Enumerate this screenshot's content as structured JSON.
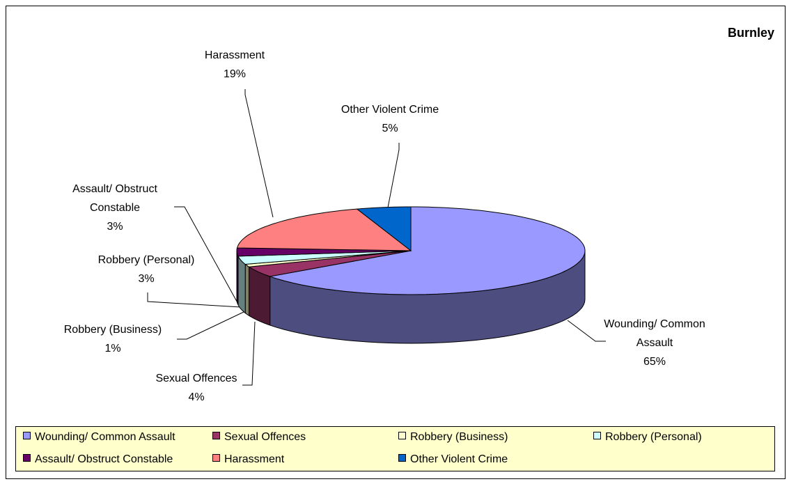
{
  "chart_data": {
    "type": "pie",
    "title": "Burnley",
    "categories": [
      "Wounding/ Common Assault",
      "Sexual Offences",
      "Robbery (Business)",
      "Robbery (Personal)",
      "Assault/ Obstruct Constable",
      "Harassment",
      "Other Violent Crime"
    ],
    "values": [
      65,
      4,
      1,
      3,
      3,
      19,
      5
    ],
    "value_labels": [
      "65%",
      "4%",
      "1%",
      "3%",
      "3%",
      "19%",
      "5%"
    ],
    "colors": [
      "#9999ff",
      "#993366",
      "#ffffcc",
      "#ccffff",
      "#660066",
      "#ff8080",
      "#0066cc"
    ],
    "legend": "bottom"
  }
}
